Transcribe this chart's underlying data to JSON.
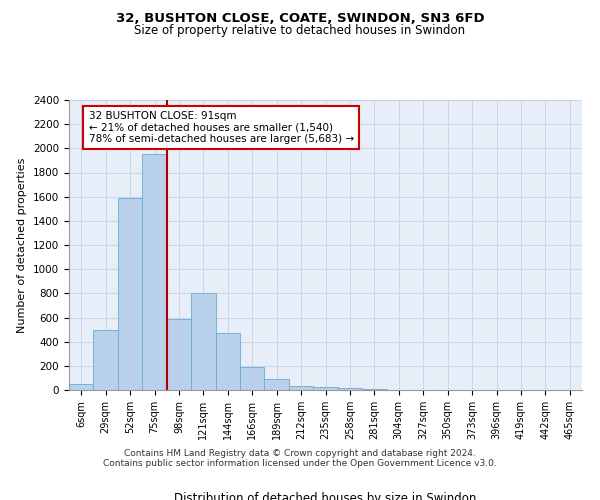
{
  "title1": "32, BUSHTON CLOSE, COATE, SWINDON, SN3 6FD",
  "title2": "Size of property relative to detached houses in Swindon",
  "xlabel": "Distribution of detached houses by size in Swindon",
  "ylabel": "Number of detached properties",
  "footnote1": "Contains HM Land Registry data © Crown copyright and database right 2024.",
  "footnote2": "Contains public sector information licensed under the Open Government Licence v3.0.",
  "annotation_line1": "32 BUSHTON CLOSE: 91sqm",
  "annotation_line2": "← 21% of detached houses are smaller (1,540)",
  "annotation_line3": "78% of semi-detached houses are larger (5,683) →",
  "bar_color": "#b8d0ea",
  "bar_edge_color": "#6aaad4",
  "marker_color": "#aa0000",
  "categories": [
    "6sqm",
    "29sqm",
    "52sqm",
    "75sqm",
    "98sqm",
    "121sqm",
    "144sqm",
    "166sqm",
    "189sqm",
    "212sqm",
    "235sqm",
    "258sqm",
    "281sqm",
    "304sqm",
    "327sqm",
    "350sqm",
    "373sqm",
    "396sqm",
    "419sqm",
    "442sqm",
    "465sqm"
  ],
  "values": [
    50,
    500,
    1590,
    1950,
    590,
    800,
    470,
    190,
    90,
    30,
    25,
    20,
    5,
    3,
    2,
    2,
    1,
    0,
    0,
    0,
    0
  ],
  "ylim": [
    0,
    2400
  ],
  "yticks": [
    0,
    200,
    400,
    600,
    800,
    1000,
    1200,
    1400,
    1600,
    1800,
    2000,
    2200,
    2400
  ],
  "marker_bar_index": 3,
  "grid_color": "#ccd5e5",
  "bg_color": "#e8eef8"
}
